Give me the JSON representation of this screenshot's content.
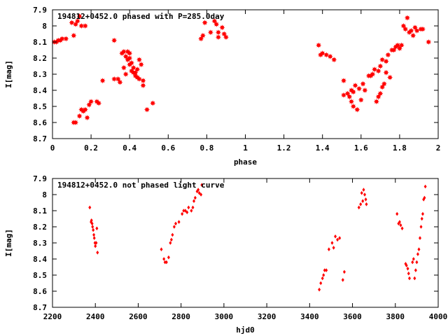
{
  "chart_data": [
    {
      "type": "scatter",
      "title": "194812+0452.0 phased with P=285.0day",
      "xlabel": "phase",
      "ylabel": "I[mag]",
      "xlim": [
        0,
        2
      ],
      "ylim": [
        7.9,
        8.7
      ],
      "y_inverted": true,
      "xticks": [
        0,
        0.2,
        0.4,
        0.6,
        0.8,
        1,
        1.2,
        1.4,
        1.6,
        1.8,
        2
      ],
      "xtick_labels": [
        "0",
        "0.2",
        "0.4",
        "0.6",
        "0.8",
        "1",
        "1.2",
        "1.4",
        "1.6",
        "1.8",
        "2"
      ],
      "yticks": [
        7.9,
        8.0,
        8.1,
        8.2,
        8.3,
        8.4,
        8.5,
        8.6,
        8.7
      ],
      "ytick_labels": [
        "7.9",
        "8",
        "8.1",
        "8.2",
        "8.3",
        "8.4",
        "8.5",
        "8.6",
        "8.7"
      ],
      "grid": false,
      "marker_color": "#ff0000",
      "marker": "star",
      "points": [
        [
          0.01,
          8.1
        ],
        [
          0.02,
          8.1
        ],
        [
          0.03,
          8.09
        ],
        [
          0.04,
          8.09
        ],
        [
          0.05,
          8.08
        ],
        [
          0.07,
          8.08
        ],
        [
          0.1,
          7.98
        ],
        [
          0.11,
          8.06
        ],
        [
          0.12,
          7.99
        ],
        [
          0.13,
          7.97
        ],
        [
          0.14,
          7.94
        ],
        [
          0.15,
          8.0
        ],
        [
          0.17,
          8.0
        ],
        [
          0.11,
          8.6
        ],
        [
          0.12,
          8.6
        ],
        [
          0.14,
          8.56
        ],
        [
          0.15,
          8.52
        ],
        [
          0.16,
          8.53
        ],
        [
          0.17,
          8.52
        ],
        [
          0.18,
          8.57
        ],
        [
          0.19,
          8.49
        ],
        [
          0.2,
          8.47
        ],
        [
          0.23,
          8.47
        ],
        [
          0.24,
          8.48
        ],
        [
          0.26,
          8.34
        ],
        [
          0.32,
          8.09
        ],
        [
          0.32,
          8.33
        ],
        [
          0.34,
          8.33
        ],
        [
          0.35,
          8.35
        ],
        [
          0.36,
          8.17
        ],
        [
          0.37,
          8.16
        ],
        [
          0.37,
          8.26
        ],
        [
          0.38,
          8.19
        ],
        [
          0.38,
          8.3
        ],
        [
          0.39,
          8.16
        ],
        [
          0.39,
          8.21
        ],
        [
          0.4,
          8.17
        ],
        [
          0.4,
          8.2
        ],
        [
          0.4,
          8.24
        ],
        [
          0.41,
          8.23
        ],
        [
          0.41,
          8.28
        ],
        [
          0.42,
          8.26
        ],
        [
          0.42,
          8.29
        ],
        [
          0.43,
          8.29
        ],
        [
          0.43,
          8.31
        ],
        [
          0.44,
          8.27
        ],
        [
          0.44,
          8.32
        ],
        [
          0.45,
          8.21
        ],
        [
          0.45,
          8.33
        ],
        [
          0.46,
          8.24
        ],
        [
          0.47,
          8.34
        ],
        [
          0.47,
          8.37
        ],
        [
          0.49,
          8.52
        ],
        [
          0.52,
          8.48
        ],
        [
          0.77,
          8.08
        ],
        [
          0.78,
          8.06
        ],
        [
          0.79,
          7.98
        ],
        [
          0.82,
          8.04
        ],
        [
          0.84,
          7.97
        ],
        [
          0.85,
          7.99
        ],
        [
          0.86,
          8.04
        ],
        [
          0.86,
          8.07
        ],
        [
          0.88,
          8.01
        ],
        [
          0.89,
          8.05
        ],
        [
          0.9,
          8.07
        ],
        [
          1.38,
          8.12
        ],
        [
          1.39,
          8.18
        ],
        [
          1.4,
          8.17
        ],
        [
          1.42,
          8.18
        ],
        [
          1.44,
          8.19
        ],
        [
          1.46,
          8.21
        ],
        [
          1.51,
          8.34
        ],
        [
          1.51,
          8.43
        ],
        [
          1.53,
          8.42
        ],
        [
          1.54,
          8.44
        ],
        [
          1.55,
          8.4
        ],
        [
          1.55,
          8.47
        ],
        [
          1.56,
          8.41
        ],
        [
          1.56,
          8.5
        ],
        [
          1.57,
          8.37
        ],
        [
          1.58,
          8.52
        ],
        [
          1.59,
          8.39
        ],
        [
          1.6,
          8.46
        ],
        [
          1.61,
          8.36
        ],
        [
          1.62,
          8.4
        ],
        [
          1.64,
          8.31
        ],
        [
          1.65,
          8.31
        ],
        [
          1.66,
          8.3
        ],
        [
          1.67,
          8.27
        ],
        [
          1.68,
          8.47
        ],
        [
          1.69,
          8.44
        ],
        [
          1.69,
          8.28
        ],
        [
          1.7,
          8.42
        ],
        [
          1.7,
          8.25
        ],
        [
          1.71,
          8.38
        ],
        [
          1.71,
          8.21
        ],
        [
          1.72,
          8.36
        ],
        [
          1.73,
          8.22
        ],
        [
          1.73,
          8.29
        ],
        [
          1.74,
          8.18
        ],
        [
          1.75,
          8.32
        ],
        [
          1.76,
          8.15
        ],
        [
          1.77,
          8.15
        ],
        [
          1.78,
          8.13
        ],
        [
          1.79,
          8.12
        ],
        [
          1.8,
          8.14
        ],
        [
          1.81,
          8.12
        ],
        [
          1.82,
          8.0
        ],
        [
          1.83,
          8.02
        ],
        [
          1.84,
          7.95
        ],
        [
          1.85,
          8.04
        ],
        [
          1.86,
          8.03
        ],
        [
          1.87,
          8.06
        ],
        [
          1.88,
          8.01
        ],
        [
          1.89,
          8.03
        ],
        [
          1.91,
          8.02
        ],
        [
          1.92,
          8.02
        ],
        [
          1.95,
          8.1
        ]
      ]
    },
    {
      "type": "scatter",
      "title": "194812+0452.0 not phased light curve",
      "xlabel": "hjd0",
      "ylabel": "I[mag]",
      "xlim": [
        2200,
        4000
      ],
      "ylim": [
        7.9,
        8.7
      ],
      "y_inverted": true,
      "xticks": [
        2200,
        2400,
        2600,
        2800,
        3000,
        3200,
        3400,
        3600,
        3800,
        4000
      ],
      "xtick_labels": [
        "2200",
        "2400",
        "2600",
        "2800",
        "3000",
        "3200",
        "3400",
        "3600",
        "3800",
        "4000"
      ],
      "yticks": [
        7.9,
        8.0,
        8.1,
        8.2,
        8.3,
        8.4,
        8.5,
        8.6,
        8.7
      ],
      "ytick_labels": [
        "7.9",
        "8",
        "8.1",
        "8.2",
        "8.3",
        "8.4",
        "8.5",
        "8.6",
        "8.7"
      ],
      "grid": false,
      "marker_color": "#ff0000",
      "marker": "diamond",
      "points": [
        [
          2374,
          8.08
        ],
        [
          2380,
          8.17
        ],
        [
          2382,
          8.16
        ],
        [
          2385,
          8.18
        ],
        [
          2387,
          8.2
        ],
        [
          2390,
          8.22
        ],
        [
          2393,
          8.25
        ],
        [
          2395,
          8.27
        ],
        [
          2398,
          8.3
        ],
        [
          2400,
          8.32
        ],
        [
          2404,
          8.3
        ],
        [
          2407,
          8.21
        ],
        [
          2410,
          8.36
        ],
        [
          2708,
          8.34
        ],
        [
          2720,
          8.4
        ],
        [
          2725,
          8.42
        ],
        [
          2732,
          8.42
        ],
        [
          2742,
          8.39
        ],
        [
          2750,
          8.3
        ],
        [
          2755,
          8.28
        ],
        [
          2760,
          8.25
        ],
        [
          2768,
          8.2
        ],
        [
          2775,
          8.18
        ],
        [
          2790,
          8.17
        ],
        [
          2805,
          8.12
        ],
        [
          2812,
          8.1
        ],
        [
          2820,
          8.1
        ],
        [
          2828,
          8.11
        ],
        [
          2835,
          8.08
        ],
        [
          2848,
          8.1
        ],
        [
          2855,
          8.08
        ],
        [
          2860,
          8.04
        ],
        [
          2866,
          8.02
        ],
        [
          2875,
          7.98
        ],
        [
          2880,
          7.97
        ],
        [
          2885,
          7.99
        ],
        [
          2893,
          8.0
        ],
        [
          2897,
          7.94
        ],
        [
          3445,
          8.59
        ],
        [
          3452,
          8.55
        ],
        [
          3460,
          8.52
        ],
        [
          3465,
          8.5
        ],
        [
          3470,
          8.47
        ],
        [
          3478,
          8.47
        ],
        [
          3490,
          8.34
        ],
        [
          3505,
          8.3
        ],
        [
          3512,
          8.33
        ],
        [
          3520,
          8.26
        ],
        [
          3530,
          8.28
        ],
        [
          3540,
          8.27
        ],
        [
          3555,
          8.53
        ],
        [
          3562,
          8.48
        ],
        [
          3630,
          8.08
        ],
        [
          3638,
          8.06
        ],
        [
          3643,
          7.99
        ],
        [
          3648,
          8.04
        ],
        [
          3652,
          7.97
        ],
        [
          3657,
          8.0
        ],
        [
          3662,
          8.03
        ],
        [
          3665,
          8.06
        ],
        [
          3808,
          8.12
        ],
        [
          3815,
          8.18
        ],
        [
          3820,
          8.17
        ],
        [
          3825,
          8.19
        ],
        [
          3832,
          8.21
        ],
        [
          3848,
          8.43
        ],
        [
          3852,
          8.44
        ],
        [
          3858,
          8.46
        ],
        [
          3862,
          8.49
        ],
        [
          3866,
          8.52
        ],
        [
          3880,
          8.42
        ],
        [
          3885,
          8.4
        ],
        [
          3890,
          8.52
        ],
        [
          3895,
          8.47
        ],
        [
          3900,
          8.42
        ],
        [
          3905,
          8.37
        ],
        [
          3910,
          8.34
        ],
        [
          3915,
          8.27
        ],
        [
          3920,
          8.2
        ],
        [
          3924,
          8.15
        ],
        [
          3928,
          8.12
        ],
        [
          3932,
          8.03
        ],
        [
          3936,
          8.02
        ],
        [
          3940,
          7.95
        ]
      ]
    }
  ]
}
